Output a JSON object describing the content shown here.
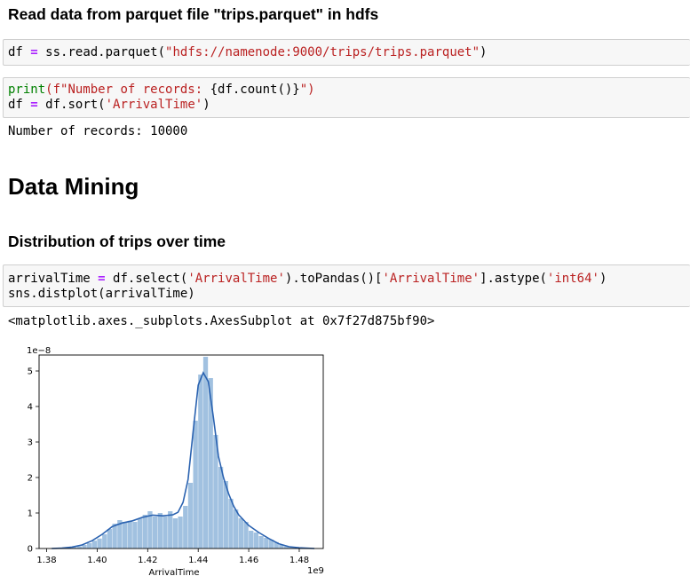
{
  "sections": {
    "read_heading": "Read data from parquet file \"trips.parquet\" in hdfs",
    "mining_heading": "Data Mining",
    "dist_heading": "Distribution of trips over time"
  },
  "cell1": {
    "var": "df",
    "op": "=",
    "call": "ss.read.parquet(",
    "arg": "\"hdfs://namenode:9000/trips/trips.parquet\"",
    "close": ")"
  },
  "cell2": {
    "print": "print",
    "fstr_open": "(f\"Number of records: ",
    "expr": "{df.count()}",
    "fstr_close": "\")",
    "var": "df",
    "op": "=",
    "call": "df.sort(",
    "arg": "'ArrivalTime'",
    "close": ")"
  },
  "output2": "Number of records: 10000",
  "cell3": {
    "var": "arrivalTime",
    "op": "=",
    "part1": "df.select(",
    "arg1": "'ArrivalTime'",
    "part2": ").toPandas()[",
    "arg2": "'ArrivalTime'",
    "part3": "].astype(",
    "arg3": "'int64'",
    "part4": ")",
    "line2": "sns.distplot(arrivalTime)"
  },
  "output3": "<matplotlib.axes._subplots.AxesSubplot at 0x7f27d875bf90>",
  "colors": {
    "bar": "#a1c1e0",
    "kde": "#2a62b0"
  },
  "chart_data": {
    "type": "bar",
    "xlabel": "ArrivalTime",
    "x_offset_label": "1e9",
    "y_offset_label": "1e−8",
    "xlim": [
      1.377,
      1.4895
    ],
    "ylim": [
      0,
      5.45
    ],
    "x_ticks": [
      1.38,
      1.4,
      1.42,
      1.44,
      1.46,
      1.48
    ],
    "x_tick_labels": [
      "1.38",
      "1.40",
      "1.42",
      "1.44",
      "1.46",
      "1.48"
    ],
    "y_ticks": [
      0,
      1,
      2,
      3,
      4,
      5
    ],
    "y_tick_labels": [
      "0",
      "1",
      "2",
      "3",
      "4",
      "5"
    ],
    "bin_width": 0.002,
    "bins": [
      [
        1.382,
        0.01
      ],
      [
        1.384,
        0.01
      ],
      [
        1.386,
        0.02
      ],
      [
        1.388,
        0.03
      ],
      [
        1.39,
        0.04
      ],
      [
        1.392,
        0.06
      ],
      [
        1.394,
        0.1
      ],
      [
        1.396,
        0.15
      ],
      [
        1.398,
        0.22
      ],
      [
        1.4,
        0.28
      ],
      [
        1.402,
        0.4
      ],
      [
        1.404,
        0.55
      ],
      [
        1.406,
        0.7
      ],
      [
        1.408,
        0.8
      ],
      [
        1.41,
        0.75
      ],
      [
        1.412,
        0.78
      ],
      [
        1.414,
        0.75
      ],
      [
        1.416,
        0.85
      ],
      [
        1.418,
        0.95
      ],
      [
        1.42,
        1.05
      ],
      [
        1.422,
        0.9
      ],
      [
        1.424,
        1.0
      ],
      [
        1.426,
        0.9
      ],
      [
        1.428,
        1.05
      ],
      [
        1.43,
        0.85
      ],
      [
        1.432,
        0.9
      ],
      [
        1.434,
        1.2
      ],
      [
        1.436,
        1.85
      ],
      [
        1.438,
        3.6
      ],
      [
        1.44,
        4.9
      ],
      [
        1.442,
        5.4
      ],
      [
        1.444,
        4.8
      ],
      [
        1.446,
        3.2
      ],
      [
        1.448,
        2.3
      ],
      [
        1.45,
        1.9
      ],
      [
        1.452,
        1.4
      ],
      [
        1.454,
        1.1
      ],
      [
        1.456,
        0.85
      ],
      [
        1.458,
        0.75
      ],
      [
        1.46,
        0.5
      ],
      [
        1.462,
        0.45
      ],
      [
        1.464,
        0.35
      ],
      [
        1.466,
        0.3
      ],
      [
        1.468,
        0.25
      ],
      [
        1.47,
        0.18
      ],
      [
        1.472,
        0.1
      ],
      [
        1.474,
        0.06
      ],
      [
        1.476,
        0.04
      ],
      [
        1.478,
        0.02
      ],
      [
        1.48,
        0.02
      ],
      [
        1.482,
        0.01
      ]
    ],
    "kde": [
      [
        1.382,
        0
      ],
      [
        1.386,
        0.01
      ],
      [
        1.39,
        0.04
      ],
      [
        1.394,
        0.1
      ],
      [
        1.398,
        0.22
      ],
      [
        1.402,
        0.4
      ],
      [
        1.406,
        0.62
      ],
      [
        1.41,
        0.72
      ],
      [
        1.414,
        0.78
      ],
      [
        1.418,
        0.88
      ],
      [
        1.422,
        0.94
      ],
      [
        1.426,
        0.92
      ],
      [
        1.43,
        0.95
      ],
      [
        1.432,
        1.02
      ],
      [
        1.434,
        1.3
      ],
      [
        1.436,
        1.95
      ],
      [
        1.438,
        3.3
      ],
      [
        1.44,
        4.6
      ],
      [
        1.442,
        4.95
      ],
      [
        1.444,
        4.7
      ],
      [
        1.446,
        3.7
      ],
      [
        1.448,
        2.6
      ],
      [
        1.45,
        2.0
      ],
      [
        1.452,
        1.55
      ],
      [
        1.454,
        1.2
      ],
      [
        1.456,
        0.95
      ],
      [
        1.46,
        0.65
      ],
      [
        1.464,
        0.45
      ],
      [
        1.468,
        0.28
      ],
      [
        1.472,
        0.13
      ],
      [
        1.476,
        0.05
      ],
      [
        1.48,
        0.02
      ],
      [
        1.486,
        0
      ]
    ]
  }
}
